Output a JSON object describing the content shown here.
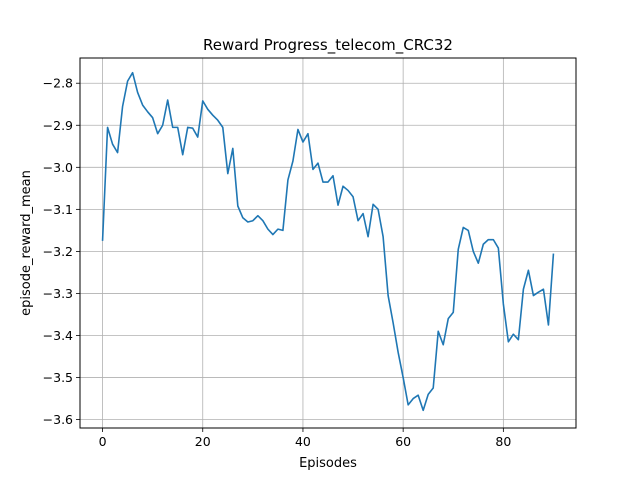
{
  "chart_data": {
    "type": "line",
    "title": "Reward Progress_telecom_CRC32",
    "xlabel": "Episodes",
    "ylabel": "episode_reward_mean",
    "xlim": [
      -4.5,
      94.5
    ],
    "ylim": [
      -3.62,
      -2.74
    ],
    "xticks": [
      0,
      20,
      40,
      60,
      80
    ],
    "xtick_labels": [
      "0",
      "20",
      "40",
      "60",
      "80"
    ],
    "yticks": [
      -2.8,
      -2.9,
      -3.0,
      -3.1,
      -3.2,
      -3.3,
      -3.4,
      -3.5,
      -3.6
    ],
    "ytick_labels": [
      "−2.8",
      "−2.9",
      "−3.0",
      "−3.1",
      "−3.2",
      "−3.3",
      "−3.4",
      "−3.5",
      "−3.6"
    ],
    "grid": true,
    "line_color": "#1f77b4",
    "series": [
      {
        "values": [
          [
            0,
            -3.175
          ],
          [
            1,
            -2.905
          ],
          [
            2,
            -2.945
          ],
          [
            3,
            -2.965
          ],
          [
            4,
            -2.855
          ],
          [
            5,
            -2.795
          ],
          [
            6,
            -2.775
          ],
          [
            7,
            -2.822
          ],
          [
            8,
            -2.852
          ],
          [
            9,
            -2.868
          ],
          [
            10,
            -2.882
          ],
          [
            11,
            -2.92
          ],
          [
            12,
            -2.9
          ],
          [
            13,
            -2.84
          ],
          [
            14,
            -2.905
          ],
          [
            15,
            -2.905
          ],
          [
            16,
            -2.97
          ],
          [
            17,
            -2.905
          ],
          [
            18,
            -2.907
          ],
          [
            19,
            -2.928
          ],
          [
            20,
            -2.842
          ],
          [
            21,
            -2.862
          ],
          [
            22,
            -2.876
          ],
          [
            23,
            -2.888
          ],
          [
            24,
            -2.905
          ],
          [
            25,
            -3.015
          ],
          [
            26,
            -2.955
          ],
          [
            27,
            -3.092
          ],
          [
            28,
            -3.12
          ],
          [
            29,
            -3.13
          ],
          [
            30,
            -3.127
          ],
          [
            31,
            -3.115
          ],
          [
            32,
            -3.127
          ],
          [
            33,
            -3.147
          ],
          [
            34,
            -3.16
          ],
          [
            35,
            -3.147
          ],
          [
            36,
            -3.15
          ],
          [
            37,
            -3.03
          ],
          [
            38,
            -2.985
          ],
          [
            39,
            -2.91
          ],
          [
            40,
            -2.94
          ],
          [
            41,
            -2.92
          ],
          [
            42,
            -3.005
          ],
          [
            43,
            -2.99
          ],
          [
            44,
            -3.035
          ],
          [
            45,
            -3.035
          ],
          [
            46,
            -3.02
          ],
          [
            47,
            -3.09
          ],
          [
            48,
            -3.045
          ],
          [
            49,
            -3.055
          ],
          [
            50,
            -3.07
          ],
          [
            51,
            -3.127
          ],
          [
            52,
            -3.11
          ],
          [
            53,
            -3.165
          ],
          [
            54,
            -3.088
          ],
          [
            55,
            -3.1
          ],
          [
            56,
            -3.165
          ],
          [
            57,
            -3.305
          ],
          [
            58,
            -3.37
          ],
          [
            59,
            -3.44
          ],
          [
            60,
            -3.5
          ],
          [
            61,
            -3.565
          ],
          [
            62,
            -3.55
          ],
          [
            63,
            -3.542
          ],
          [
            64,
            -3.578
          ],
          [
            65,
            -3.54
          ],
          [
            66,
            -3.525
          ],
          [
            67,
            -3.39
          ],
          [
            68,
            -3.422
          ],
          [
            69,
            -3.36
          ],
          [
            70,
            -3.345
          ],
          [
            71,
            -3.195
          ],
          [
            72,
            -3.143
          ],
          [
            73,
            -3.15
          ],
          [
            74,
            -3.2
          ],
          [
            75,
            -3.228
          ],
          [
            76,
            -3.183
          ],
          [
            77,
            -3.172
          ],
          [
            78,
            -3.172
          ],
          [
            79,
            -3.192
          ],
          [
            80,
            -3.325
          ],
          [
            81,
            -3.415
          ],
          [
            82,
            -3.397
          ],
          [
            83,
            -3.41
          ],
          [
            84,
            -3.29
          ],
          [
            85,
            -3.245
          ],
          [
            86,
            -3.305
          ],
          [
            87,
            -3.297
          ],
          [
            88,
            -3.29
          ],
          [
            89,
            -3.375
          ],
          [
            90,
            -3.205
          ]
        ]
      }
    ]
  }
}
